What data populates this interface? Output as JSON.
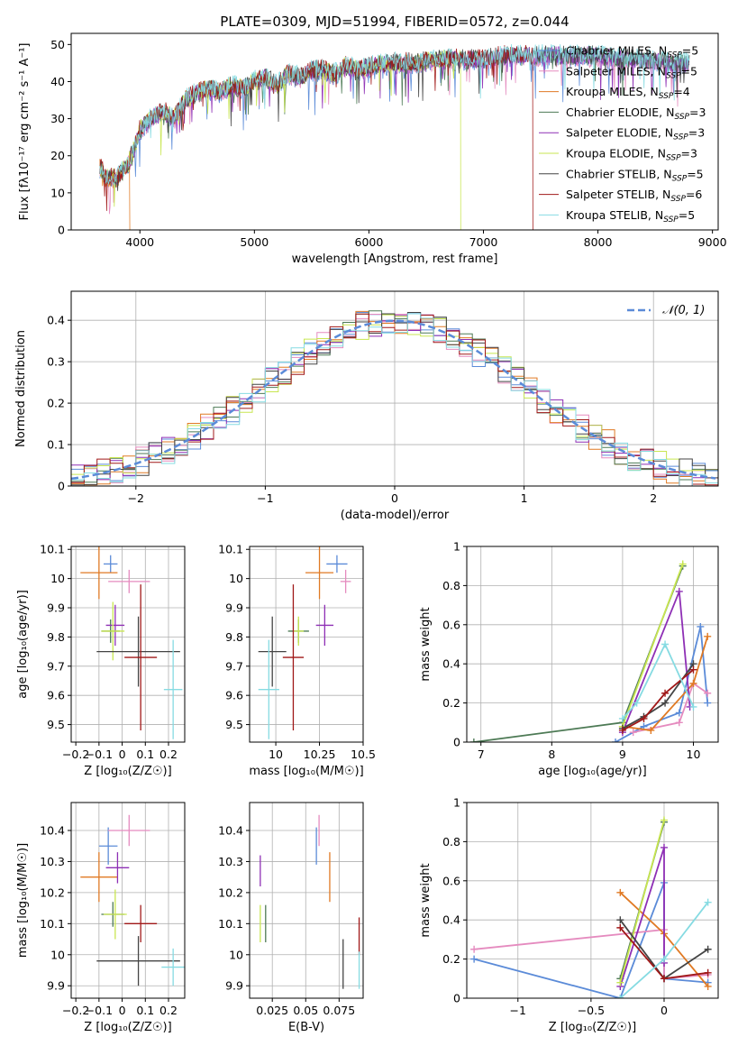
{
  "title": "PLATE=0309, MJD=51994, FIBERID=0572, z=0.044",
  "colors": {
    "chabrier_miles": "#5b8bd8",
    "salpeter_miles": "#e58bbf",
    "kroupa_miles": "#e07a24",
    "chabrier_elodie": "#4d7a55",
    "salpeter_elodie": "#8e2fb5",
    "kroupa_elodie": "#c8e650",
    "chabrier_stelib": "#444444",
    "salpeter_stelib": "#a01818",
    "kroupa_stelib": "#86dbe2"
  },
  "chart_data": [
    {
      "id": "spectrum",
      "type": "line",
      "xlabel": "wavelength [Angstrom, rest frame]",
      "ylabel": "Flux [fλ10⁻¹⁷ erg cm⁻² s⁻¹ A⁻¹]",
      "xlim": [
        3400,
        9050
      ],
      "ylim": [
        0,
        53
      ],
      "xticks": [
        4000,
        5000,
        6000,
        7000,
        8000,
        9000
      ],
      "yticks": [
        0,
        10,
        20,
        30,
        40,
        50
      ],
      "legend_position": "top-right",
      "legend": [
        {
          "key": "chabrier_miles",
          "label": "Chabrier MILES, N",
          "sub": "SSP",
          "eq": "=5"
        },
        {
          "key": "salpeter_miles",
          "label": "Salpeter MILES, N",
          "sub": "SSP",
          "eq": "=5"
        },
        {
          "key": "kroupa_miles",
          "label": "Kroupa MILES, N",
          "sub": "SSP",
          "eq": "=4"
        },
        {
          "key": "chabrier_elodie",
          "label": "Chabrier ELODIE, N",
          "sub": "SSP",
          "eq": "=3"
        },
        {
          "key": "salpeter_elodie",
          "label": "Salpeter ELODIE, N",
          "sub": "SSP",
          "eq": "=3"
        },
        {
          "key": "kroupa_elodie",
          "label": "Kroupa ELODIE, N",
          "sub": "SSP",
          "eq": "=3"
        },
        {
          "key": "chabrier_stelib",
          "label": "Chabrier STELIB, N",
          "sub": "SSP",
          "eq": "=5"
        },
        {
          "key": "salpeter_stelib",
          "label": "Salpeter STELIB, N",
          "sub": "SSP",
          "eq": "=6"
        },
        {
          "key": "kroupa_stelib",
          "label": "Kroupa STELIB, N",
          "sub": "SSP",
          "eq": "=5"
        }
      ],
      "envelope": [
        [
          3650,
          17
        ],
        [
          3700,
          14
        ],
        [
          3800,
          14
        ],
        [
          3900,
          18
        ],
        [
          3950,
          22
        ],
        [
          4000,
          27
        ],
        [
          4100,
          30
        ],
        [
          4200,
          32
        ],
        [
          4300,
          30
        ],
        [
          4400,
          35
        ],
        [
          4500,
          37
        ],
        [
          4600,
          38
        ],
        [
          4700,
          37
        ],
        [
          4800,
          39
        ],
        [
          4900,
          38
        ],
        [
          5000,
          40
        ],
        [
          5100,
          41
        ],
        [
          5200,
          39
        ],
        [
          5300,
          42
        ],
        [
          5400,
          41
        ],
        [
          5500,
          43
        ],
        [
          5600,
          43
        ],
        [
          5700,
          42
        ],
        [
          5800,
          44
        ],
        [
          5900,
          43
        ],
        [
          6000,
          44
        ],
        [
          6200,
          45
        ],
        [
          6400,
          45
        ],
        [
          6600,
          46
        ],
        [
          6800,
          46
        ],
        [
          7000,
          46
        ],
        [
          7200,
          47
        ],
        [
          7400,
          47
        ],
        [
          7600,
          47
        ],
        [
          7800,
          47
        ],
        [
          8000,
          47
        ],
        [
          8200,
          46
        ],
        [
          8400,
          46
        ],
        [
          8600,
          45
        ],
        [
          8800,
          45
        ]
      ],
      "drops": [
        {
          "key": "kroupa_miles",
          "x": 3910,
          "cut": 3910
        },
        {
          "key": "kroupa_elodie",
          "x": 6800,
          "cut": 6800
        },
        {
          "key": "salpeter_stelib",
          "x": 7430,
          "cut": 7430
        }
      ]
    },
    {
      "id": "residual-histogram",
      "type": "line",
      "xlabel": "(data-model)/error",
      "ylabel": "Normed distribution",
      "xlim": [
        -2.5,
        2.5
      ],
      "ylim": [
        0,
        0.47
      ],
      "xticks": [
        -2,
        -1,
        0,
        1,
        2
      ],
      "yticks": [
        0.0,
        0.1,
        0.2,
        0.3,
        0.4
      ],
      "grid": true,
      "legend_position": "top-right",
      "reference": {
        "label": "𝒩(0, 1)",
        "mean": 0,
        "sigma": 1
      }
    },
    {
      "id": "age-vs-Z",
      "type": "scatter",
      "xlabel": "Z [log₁₀(Z/Z☉)]",
      "ylabel": "age  [log₁₀(age/yr)]",
      "xlim": [
        -0.22,
        0.27
      ],
      "ylim": [
        9.44,
        10.11
      ],
      "xticks": [
        -0.2,
        -0.1,
        0.0,
        0.1,
        0.2
      ],
      "yticks": [
        9.5,
        9.6,
        9.7,
        9.8,
        9.9,
        10.0,
        10.1
      ],
      "grid": true,
      "points": [
        {
          "key": "chabrier_miles",
          "x": -0.05,
          "y": 10.05,
          "xerr": 0.03,
          "yerr": 0.03
        },
        {
          "key": "salpeter_miles",
          "x": 0.03,
          "y": 9.99,
          "xerr": 0.09,
          "yerr": 0.04
        },
        {
          "key": "kroupa_miles",
          "x": -0.1,
          "y": 10.02,
          "xerr": 0.08,
          "yerr": 0.09
        },
        {
          "key": "chabrier_elodie",
          "x": -0.05,
          "y": 9.82,
          "xerr": 0.04,
          "yerr": 0.04
        },
        {
          "key": "salpeter_elodie",
          "x": -0.03,
          "y": 9.84,
          "xerr": 0.04,
          "yerr": 0.07
        },
        {
          "key": "kroupa_elodie",
          "x": -0.04,
          "y": 9.82,
          "xerr": 0.05,
          "yerr": 0.1
        },
        {
          "key": "chabrier_stelib",
          "x": 0.07,
          "y": 9.75,
          "xerr": 0.18,
          "yerr": 0.12
        },
        {
          "key": "salpeter_stelib",
          "x": 0.08,
          "y": 9.73,
          "xerr": 0.07,
          "yerr": 0.25
        },
        {
          "key": "kroupa_stelib",
          "x": 0.22,
          "y": 9.62,
          "xerr": 0.04,
          "yerr": 0.17
        }
      ]
    },
    {
      "id": "age-vs-mass",
      "type": "scatter",
      "xlabel": "mass [log₁₀(M/M☉)]",
      "ylabel": "",
      "xlim": [
        9.85,
        10.5
      ],
      "ylim": [
        9.44,
        10.11
      ],
      "xticks": [
        10.0,
        10.25,
        10.5
      ],
      "yticks": [
        9.5,
        9.6,
        9.7,
        9.8,
        9.9,
        10.0,
        10.1
      ],
      "grid": true,
      "points": [
        {
          "key": "chabrier_miles",
          "x": 10.35,
          "y": 10.05,
          "xerr": 0.06,
          "yerr": 0.03
        },
        {
          "key": "salpeter_miles",
          "x": 10.4,
          "y": 9.99,
          "xerr": 0.03,
          "yerr": 0.04
        },
        {
          "key": "kroupa_miles",
          "x": 10.25,
          "y": 10.02,
          "xerr": 0.08,
          "yerr": 0.09
        },
        {
          "key": "chabrier_elodie",
          "x": 10.13,
          "y": 9.82,
          "xerr": 0.06,
          "yerr": 0.04
        },
        {
          "key": "salpeter_elodie",
          "x": 10.28,
          "y": 9.84,
          "xerr": 0.05,
          "yerr": 0.07
        },
        {
          "key": "kroupa_elodie",
          "x": 10.13,
          "y": 9.82,
          "xerr": 0.03,
          "yerr": 0.05
        },
        {
          "key": "chabrier_stelib",
          "x": 9.98,
          "y": 9.75,
          "xerr": 0.08,
          "yerr": 0.12
        },
        {
          "key": "salpeter_stelib",
          "x": 10.1,
          "y": 9.73,
          "xerr": 0.06,
          "yerr": 0.25
        },
        {
          "key": "kroupa_stelib",
          "x": 9.96,
          "y": 9.62,
          "xerr": 0.06,
          "yerr": 0.17
        }
      ]
    },
    {
      "id": "mass-weight-vs-age",
      "type": "line",
      "xlabel": "age  [log₁₀(age/yr)]",
      "ylabel": "mass weight",
      "xlim": [
        6.8,
        10.35
      ],
      "ylim": [
        0,
        1.0
      ],
      "xticks": [
        7,
        8,
        9,
        10
      ],
      "yticks": [
        0.0,
        0.2,
        0.4,
        0.6,
        0.8,
        1.0
      ],
      "grid": true,
      "series": [
        {
          "key": "chabrier_miles",
          "values": [
            [
              8.9,
              0.0
            ],
            [
              9.3,
              0.08
            ],
            [
              9.8,
              0.15
            ],
            [
              10.1,
              0.59
            ],
            [
              10.2,
              0.2
            ]
          ]
        },
        {
          "key": "salpeter_miles",
          "values": [
            [
              9.15,
              0.05
            ],
            [
              9.8,
              0.1
            ],
            [
              10.0,
              0.3
            ],
            [
              10.2,
              0.25
            ]
          ]
        },
        {
          "key": "kroupa_miles",
          "values": [
            [
              9.0,
              0.08
            ],
            [
              9.4,
              0.06
            ],
            [
              10.0,
              0.3
            ],
            [
              10.2,
              0.54
            ]
          ]
        },
        {
          "key": "chabrier_elodie",
          "values": [
            [
              6.9,
              0.0
            ],
            [
              9.0,
              0.1
            ],
            [
              9.85,
              0.9
            ]
          ]
        },
        {
          "key": "salpeter_elodie",
          "values": [
            [
              9.0,
              0.05
            ],
            [
              9.8,
              0.77
            ],
            [
              9.95,
              0.18
            ]
          ]
        },
        {
          "key": "kroupa_elodie",
          "values": [
            [
              9.0,
              0.08
            ],
            [
              9.85,
              0.91
            ]
          ]
        },
        {
          "key": "chabrier_stelib",
          "values": [
            [
              9.0,
              0.07
            ],
            [
              9.3,
              0.13
            ],
            [
              9.6,
              0.2
            ],
            [
              10.0,
              0.4
            ]
          ]
        },
        {
          "key": "salpeter_stelib",
          "values": [
            [
              9.0,
              0.06
            ],
            [
              9.3,
              0.12
            ],
            [
              9.6,
              0.25
            ],
            [
              10.0,
              0.37
            ]
          ]
        },
        {
          "key": "kroupa_stelib",
          "values": [
            [
              9.0,
              0.12
            ],
            [
              9.2,
              0.2
            ],
            [
              9.6,
              0.5
            ],
            [
              10.0,
              0.18
            ]
          ]
        }
      ]
    },
    {
      "id": "mass-vs-Z",
      "type": "scatter",
      "xlabel": "Z [log₁₀(Z/Z☉)]",
      "ylabel": "mass [log₁₀(M/M☉)]",
      "xlim": [
        -0.22,
        0.27
      ],
      "ylim": [
        9.86,
        10.49
      ],
      "xticks": [
        -0.2,
        -0.1,
        0.0,
        0.1,
        0.2
      ],
      "yticks": [
        9.9,
        10.0,
        10.1,
        10.2,
        10.3,
        10.4
      ],
      "grid": true,
      "points": [
        {
          "key": "chabrier_miles",
          "x": -0.06,
          "y": 10.35,
          "xerr": 0.04,
          "yerr": 0.06
        },
        {
          "key": "salpeter_miles",
          "x": 0.03,
          "y": 10.4,
          "xerr": 0.09,
          "yerr": 0.05
        },
        {
          "key": "kroupa_miles",
          "x": -0.1,
          "y": 10.25,
          "xerr": 0.08,
          "yerr": 0.08
        },
        {
          "key": "chabrier_elodie",
          "x": -0.04,
          "y": 10.13,
          "xerr": 0.05,
          "yerr": 0.04
        },
        {
          "key": "salpeter_elodie",
          "x": -0.02,
          "y": 10.28,
          "xerr": 0.05,
          "yerr": 0.05
        },
        {
          "key": "kroupa_elodie",
          "x": -0.03,
          "y": 10.13,
          "xerr": 0.05,
          "yerr": 0.08
        },
        {
          "key": "chabrier_stelib",
          "x": 0.07,
          "y": 9.98,
          "xerr": 0.18,
          "yerr": 0.08
        },
        {
          "key": "salpeter_stelib",
          "x": 0.08,
          "y": 10.1,
          "xerr": 0.07,
          "yerr": 0.06
        },
        {
          "key": "kroupa_stelib",
          "x": 0.22,
          "y": 9.96,
          "xerr": 0.05,
          "yerr": 0.06
        }
      ]
    },
    {
      "id": "mass-vs-EBV",
      "type": "scatter",
      "xlabel": "E(B-V)",
      "ylabel": "",
      "xlim": [
        0.008,
        0.093
      ],
      "ylim": [
        9.86,
        10.49
      ],
      "xticks": [
        0.025,
        0.05,
        0.075
      ],
      "yticks": [
        9.9,
        10.0,
        10.1,
        10.2,
        10.3,
        10.4
      ],
      "grid": true,
      "points": [
        {
          "key": "chabrier_miles",
          "x": 0.058,
          "y": 10.35,
          "xerr": 0.0,
          "yerr": 0.06
        },
        {
          "key": "salpeter_miles",
          "x": 0.06,
          "y": 10.4,
          "xerr": 0.0,
          "yerr": 0.05
        },
        {
          "key": "kroupa_miles",
          "x": 0.068,
          "y": 10.25,
          "xerr": 0.0,
          "yerr": 0.08
        },
        {
          "key": "chabrier_elodie",
          "x": 0.02,
          "y": 10.1,
          "xerr": 0.0,
          "yerr": 0.06
        },
        {
          "key": "salpeter_elodie",
          "x": 0.016,
          "y": 10.27,
          "xerr": 0.0,
          "yerr": 0.05
        },
        {
          "key": "kroupa_elodie",
          "x": 0.016,
          "y": 10.1,
          "xerr": 0.0,
          "yerr": 0.06
        },
        {
          "key": "chabrier_stelib",
          "x": 0.078,
          "y": 9.97,
          "xerr": 0.0,
          "yerr": 0.08
        },
        {
          "key": "salpeter_stelib",
          "x": 0.09,
          "y": 10.06,
          "xerr": 0.0,
          "yerr": 0.06
        },
        {
          "key": "kroupa_stelib",
          "x": 0.09,
          "y": 9.95,
          "xerr": 0.0,
          "yerr": 0.06
        }
      ]
    },
    {
      "id": "mass-weight-vs-Z",
      "type": "line",
      "xlabel": "Z [log₁₀(Z/Z☉)]",
      "ylabel": "mass weight",
      "xlim": [
        -1.35,
        0.37
      ],
      "ylim": [
        0,
        1.0
      ],
      "xticks": [
        -1.0,
        -0.5,
        0.0
      ],
      "yticks": [
        0.0,
        0.2,
        0.4,
        0.6,
        0.8,
        1.0
      ],
      "grid": true,
      "series": [
        {
          "key": "chabrier_miles",
          "values": [
            [
              -1.3,
              0.2
            ],
            [
              -0.3,
              0.0
            ],
            [
              0.0,
              0.59
            ],
            [
              0.0,
              0.1
            ],
            [
              0.3,
              0.08
            ]
          ]
        },
        {
          "key": "salpeter_miles",
          "values": [
            [
              -1.3,
              0.25
            ],
            [
              0.0,
              0.35
            ],
            [
              0.0,
              0.1
            ],
            [
              0.3,
              0.12
            ]
          ]
        },
        {
          "key": "kroupa_miles",
          "values": [
            [
              -0.3,
              0.54
            ],
            [
              0.0,
              0.33
            ],
            [
              0.3,
              0.06
            ]
          ]
        },
        {
          "key": "chabrier_elodie",
          "values": [
            [
              -0.3,
              0.1
            ],
            [
              0.0,
              0.9
            ]
          ]
        },
        {
          "key": "salpeter_elodie",
          "values": [
            [
              -0.3,
              0.06
            ],
            [
              0.0,
              0.77
            ],
            [
              0.0,
              0.18
            ]
          ]
        },
        {
          "key": "kroupa_elodie",
          "values": [
            [
              -0.3,
              0.08
            ],
            [
              0.0,
              0.91
            ]
          ]
        },
        {
          "key": "chabrier_stelib",
          "values": [
            [
              -0.3,
              0.4
            ],
            [
              0.0,
              0.1
            ],
            [
              0.3,
              0.25
            ]
          ]
        },
        {
          "key": "salpeter_stelib",
          "values": [
            [
              -0.3,
              0.36
            ],
            [
              0.0,
              0.1
            ],
            [
              0.3,
              0.13
            ]
          ]
        },
        {
          "key": "kroupa_stelib",
          "values": [
            [
              -0.3,
              0.0
            ],
            [
              0.0,
              0.2
            ],
            [
              0.3,
              0.49
            ]
          ]
        }
      ]
    }
  ]
}
